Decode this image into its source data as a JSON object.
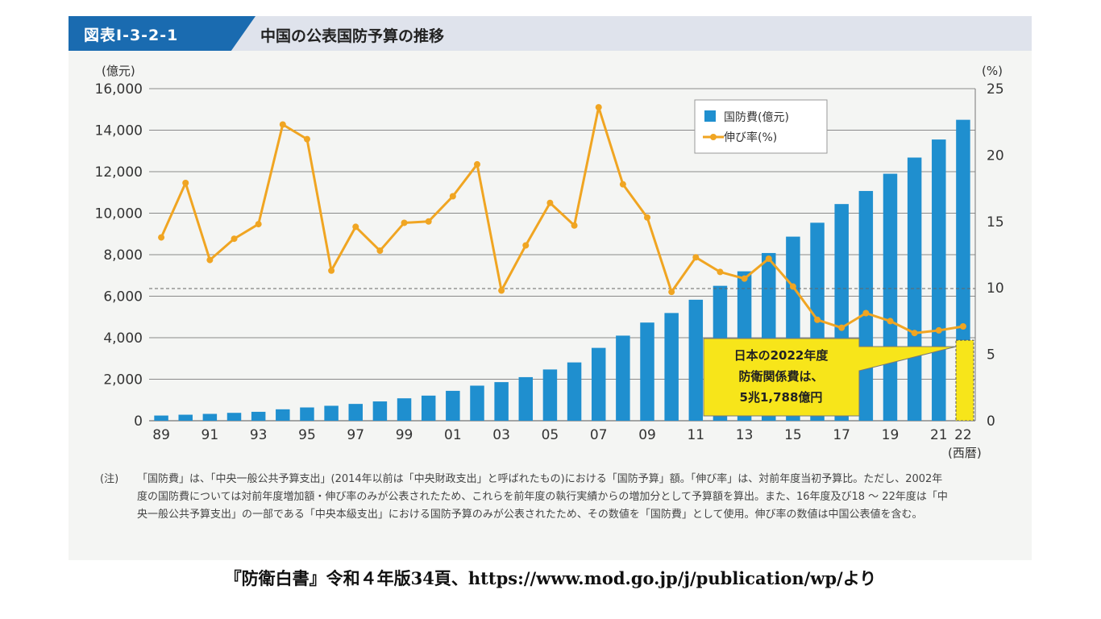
{
  "header": {
    "figure_id": "図表Ⅰ-3-2-1",
    "title": "中国の公表国防予算の推移"
  },
  "chart_data": {
    "type": "bar",
    "title": "中国の公表国防予算の推移",
    "y_left_unit": "(億元)",
    "y_right_unit": "(%)",
    "x_unit": "(西暦)",
    "ylim_left": [
      0,
      16000
    ],
    "ylim_right": [
      0,
      25
    ],
    "y_left_ticks": [
      "0",
      "2,000",
      "4,000",
      "6,000",
      "8,000",
      "10,000",
      "12,000",
      "14,000",
      "16,000"
    ],
    "y_right_ticks": [
      "0",
      "5",
      "10",
      "15",
      "20",
      "25"
    ],
    "x_tick_labels": [
      "89",
      "91",
      "93",
      "95",
      "97",
      "99",
      "01",
      "03",
      "05",
      "07",
      "09",
      "11",
      "13",
      "15",
      "17",
      "19",
      "21",
      "22"
    ],
    "categories": [
      "89",
      "90",
      "91",
      "92",
      "93",
      "94",
      "95",
      "96",
      "97",
      "98",
      "99",
      "00",
      "01",
      "02",
      "03",
      "04",
      "05",
      "06",
      "07",
      "08",
      "09",
      "10",
      "11",
      "12",
      "13",
      "14",
      "15",
      "16",
      "17",
      "18",
      "19",
      "20",
      "21",
      "22"
    ],
    "series": [
      {
        "name": "国防費(億元)",
        "type": "bar",
        "axis": "left",
        "color": "#1f8fcf",
        "values": [
          250,
          290,
          330,
          380,
          430,
          550,
          640,
          720,
          810,
          930,
          1080,
          1210,
          1440,
          1690,
          1860,
          2100,
          2470,
          2810,
          3510,
          4100,
          4730,
          5190,
          5830,
          6500,
          7200,
          8080,
          8870,
          9540,
          10440,
          11070,
          11900,
          12680,
          13550,
          14500
        ]
      },
      {
        "name": "伸び率(%)",
        "type": "line",
        "axis": "right",
        "color": "#f0a522",
        "values": [
          13.8,
          17.9,
          12.1,
          13.7,
          14.8,
          22.3,
          21.2,
          11.3,
          14.6,
          12.8,
          14.9,
          15.0,
          16.9,
          19.3,
          9.8,
          13.2,
          16.4,
          14.7,
          23.6,
          17.8,
          15.3,
          9.7,
          12.3,
          11.2,
          10.7,
          12.2,
          10.1,
          7.6,
          7.0,
          8.1,
          7.5,
          6.6,
          6.8,
          7.1
        ]
      }
    ],
    "japan_reference": {
      "label_lines": [
        "日本の2022年度",
        "防衛関係費は、",
        "5兆1,788億円"
      ],
      "value_oku_yuan": 3880,
      "fill": "#f7e51a"
    },
    "reference_line_value": 6370,
    "legend": {
      "position": "top-right",
      "items": [
        "国防費(億元)",
        "伸び率(%)"
      ]
    }
  },
  "note": {
    "label": "(注)",
    "text": "「国防費」は、「中央一般公共予算支出」(2014年以前は「中央財政支出」と呼ばれたもの)における「国防予算」額。「伸び率」は、対前年度当初予算比。ただし、2002年度の国防費については対前年度増加額・伸び率のみが公表されたため、これらを前年度の執行実績からの増加分として予算額を算出。また、16年度及び18 ～ 22年度は「中央一般公共予算支出」の一部である「中央本級支出」における国防予算のみが公表されたため、その数値を「国防費」として使用。伸び率の数値は中国公表値を含む。"
  },
  "source": "『防衛白書』令和４年版34頁、https://www.mod.go.jp/j/publication/wp/より",
  "colors": {
    "header_accent": "#1a6bb0",
    "bar": "#1f8fcf",
    "line": "#f0a522",
    "callout": "#f7e51a"
  }
}
